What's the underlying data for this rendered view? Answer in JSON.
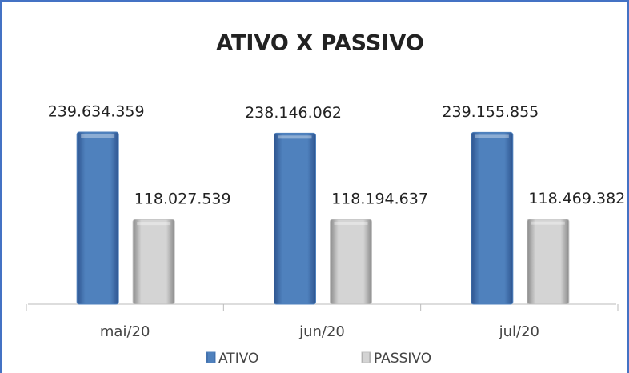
{
  "chart_data": {
    "type": "bar",
    "title": "ATIVO X PASSIVO",
    "categories": [
      "mai/20",
      "jun/20",
      "jul/20"
    ],
    "series": [
      {
        "name": "ATIVO",
        "color": "#4f81bd",
        "values": [
          239634359,
          238146062,
          239155855
        ],
        "value_labels": [
          "239.634.359",
          "238.146.062",
          "239.155.855"
        ]
      },
      {
        "name": "PASSIVO",
        "color": "#c0c0c0",
        "values": [
          118027539,
          118194637,
          118469382
        ],
        "value_labels": [
          "118.027.539",
          "118.194.637",
          "118.469.382"
        ]
      }
    ],
    "legend": "bottom"
  }
}
